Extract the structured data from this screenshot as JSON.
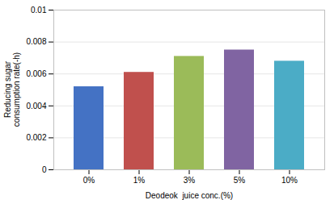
{
  "chart_data": {
    "type": "bar",
    "categories": [
      "0%",
      "1%",
      "3%",
      "5%",
      "10%"
    ],
    "values": [
      0.0052,
      0.0061,
      0.0071,
      0.0075,
      0.0068
    ],
    "colors": [
      "#4472C4",
      "#C0504D",
      "#9BBB59",
      "#8064A2",
      "#4BACC6"
    ],
    "xlabel": "Deodeok  juice conc.(%)",
    "ylabel": "Reducing sugar\nconsumption rate(-h)",
    "ylim": [
      0,
      0.01
    ],
    "yticks": [
      0,
      0.002,
      0.004,
      0.006,
      0.008,
      0.01
    ],
    "grid": true
  }
}
